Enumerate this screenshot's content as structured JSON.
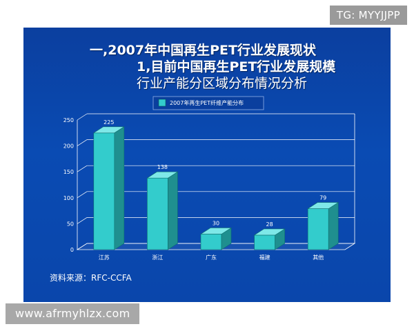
{
  "watermark_top": "TG: MYYJJPP",
  "watermark_bottom": "www.afrmyhlzx.com",
  "slide": {
    "title_line_1": "一,2007年中国再生PET行业发展现状",
    "title_line_2": "1,目前中国再生PET行业发展规模",
    "title_line_3": "行业产能分区域分布情况分析",
    "source": "资料来源：RFC-CCFA"
  },
  "colors": {
    "bar_front": "#33cccc",
    "bar_side": "#1f8f8f",
    "bar_top": "#7ee8e8",
    "grid": "#ffffff",
    "background": "#0b44a8"
  },
  "chart_data": {
    "type": "bar",
    "categories": [
      "江苏",
      "浙江",
      "广东",
      "福建",
      "其他"
    ],
    "series": [
      {
        "name": "2007年再生PET纤维产能分布",
        "values": [
          225,
          138,
          30,
          28,
          79
        ]
      }
    ],
    "ylim": [
      0,
      250
    ],
    "yticks": [
      0,
      50,
      100,
      150,
      200,
      250
    ],
    "grid": true,
    "legend_position": "top"
  }
}
